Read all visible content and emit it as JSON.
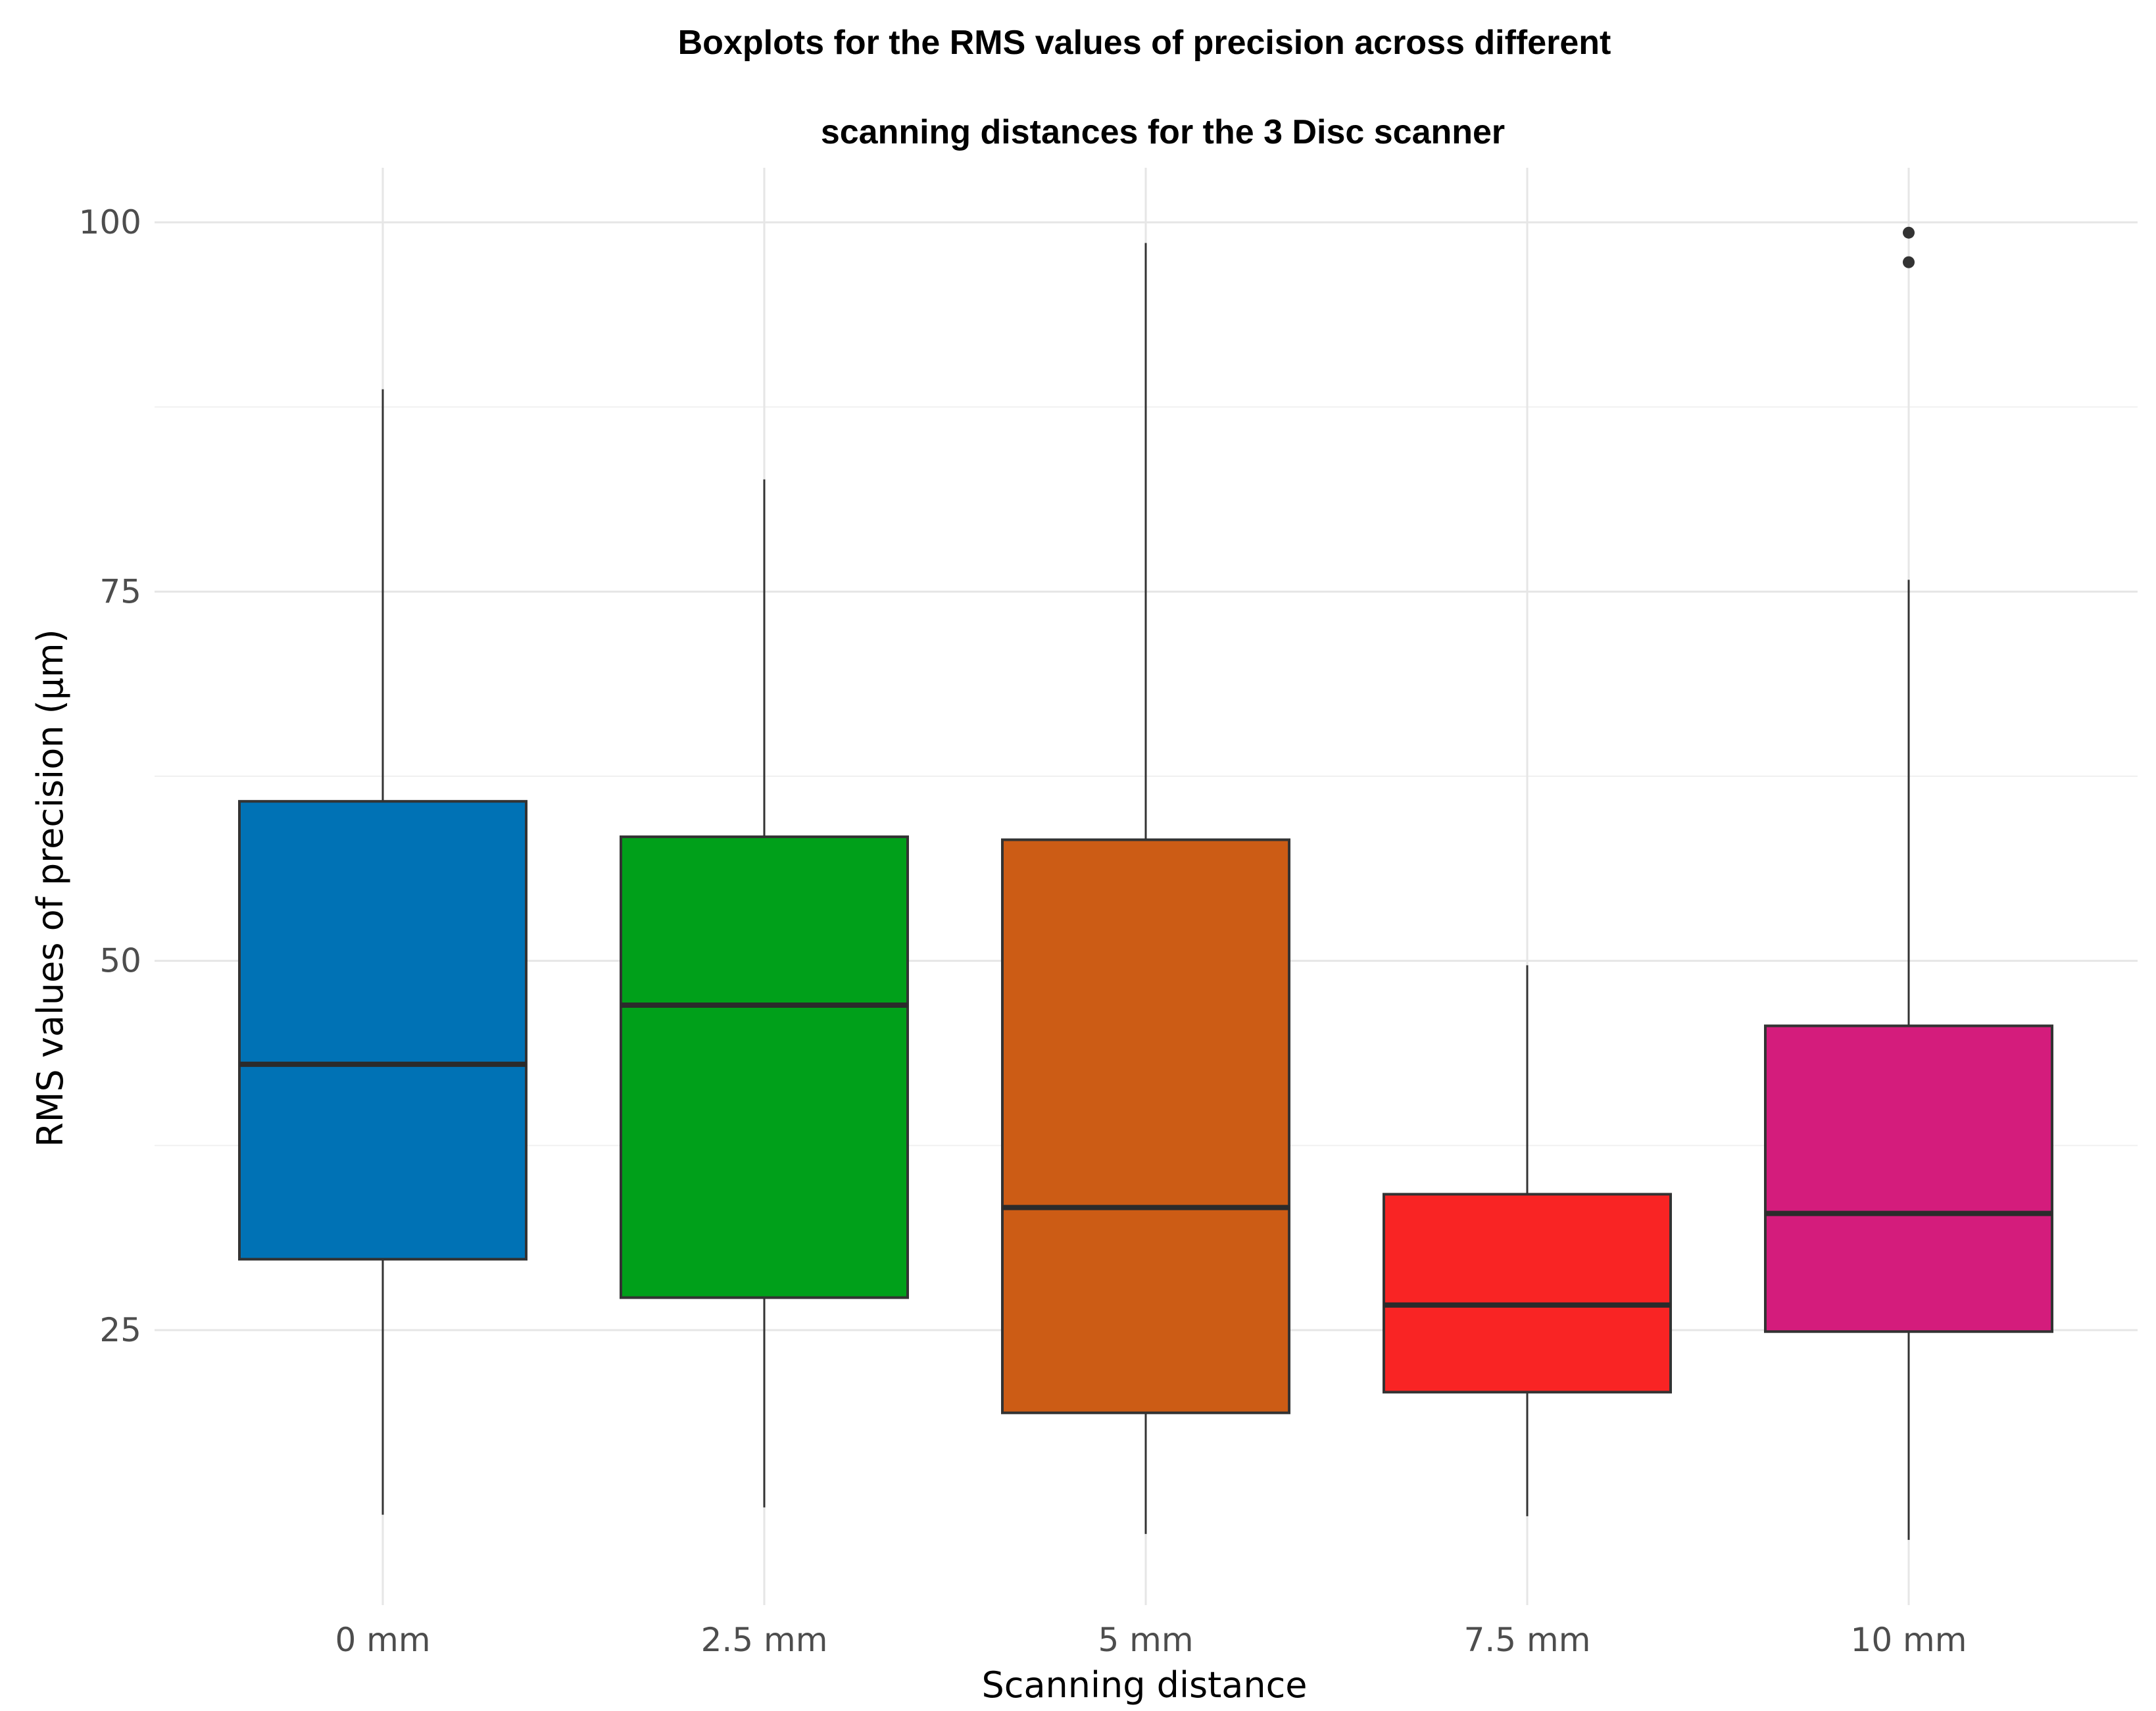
{
  "chart_data": {
    "type": "boxplot",
    "title": "Boxplots for the RMS values of precision across different",
    "subtitle": "scanning distances for the 3 Disc scanner",
    "xlabel": "Scanning distance",
    "ylabel": "RMS values of precision (µm)",
    "ylim": [
      10,
      104
    ],
    "yticks": [
      25,
      50,
      75,
      100
    ],
    "ytick_labels": [
      "25",
      "50",
      "75",
      "100"
    ],
    "minor_grid": [
      37.5,
      62.5,
      87.5
    ],
    "grid": true,
    "legend": "none",
    "categories": [
      "0 mm",
      "2.5 mm",
      "5 mm",
      "7.5 mm",
      "10 mm"
    ],
    "series": [
      {
        "category": "0 mm",
        "min": 12.5,
        "q1": 29.8,
        "median": 43.0,
        "q3": 60.8,
        "max": 88.7,
        "outliers": [],
        "color": "#0072B5"
      },
      {
        "category": "2.5 mm",
        "min": 13.0,
        "q1": 27.2,
        "median": 47.0,
        "q3": 58.4,
        "max": 82.6,
        "outliers": [],
        "color": "#00A01A"
      },
      {
        "category": "5 mm",
        "min": 11.2,
        "q1": 19.4,
        "median": 33.3,
        "q3": 58.2,
        "max": 98.6,
        "outliers": [],
        "color": "#CC5C15"
      },
      {
        "category": "7.5 mm",
        "min": 12.4,
        "q1": 20.8,
        "median": 26.7,
        "q3": 34.2,
        "max": 49.7,
        "outliers": [],
        "color": "#F92424"
      },
      {
        "category": "10 mm",
        "min": 10.8,
        "q1": 24.9,
        "median": 32.9,
        "q3": 45.6,
        "max": 75.8,
        "outliers": [
          97.3,
          99.3
        ],
        "color": "#D41C7C"
      }
    ]
  }
}
